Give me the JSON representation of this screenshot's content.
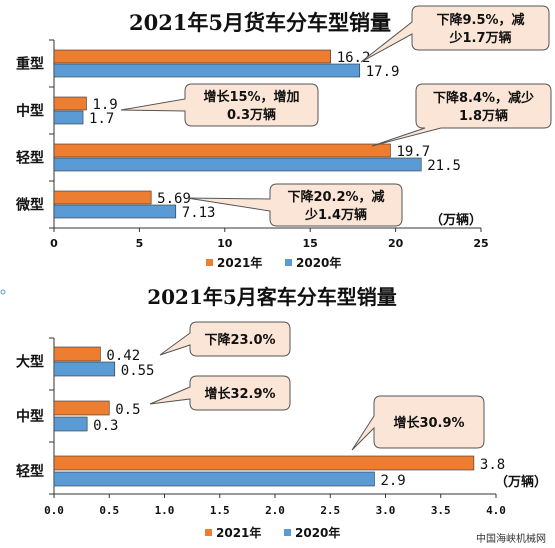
{
  "colors": {
    "y2021": "#ED7D31",
    "y2020": "#5B9BD5",
    "bubble": "#FBE5D6",
    "bubble_stroke": "#555555",
    "axis": "#333333",
    "grid": "#D9D9D9"
  },
  "source": "中国海峡机械网",
  "chart_data": [
    {
      "type": "bar",
      "orientation": "horizontal",
      "title": "2021年5月货车分车型销量",
      "categories": [
        "重型",
        "中型",
        "轻型",
        "微型"
      ],
      "series": [
        {
          "name": "2021年",
          "values": [
            16.2,
            1.9,
            19.7,
            5.69
          ],
          "labels": [
            "16.2",
            "1.9",
            "19.7",
            "5.69"
          ]
        },
        {
          "name": "2020年",
          "values": [
            17.9,
            1.7,
            21.5,
            7.13
          ],
          "labels": [
            "17.9",
            "1.7",
            "21.5",
            "7.13"
          ]
        }
      ],
      "xlim": [
        0,
        25
      ],
      "ticks": [
        "0",
        "5",
        "10",
        "15",
        "20",
        "25"
      ],
      "unit": "（万辆）",
      "legend_position": "bottom",
      "annotations": [
        {
          "category": "重型",
          "lines": [
            "下降9.5%，减",
            "少1.7万辆"
          ]
        },
        {
          "category": "中型",
          "lines": [
            "增长15%，增加",
            "0.3万辆"
          ]
        },
        {
          "category": "轻型",
          "lines": [
            "下降8.4%，减少",
            "1.8万辆"
          ]
        },
        {
          "category": "微型",
          "lines": [
            "下降20.2%，减",
            "少1.4万辆"
          ]
        }
      ]
    },
    {
      "type": "bar",
      "orientation": "horizontal",
      "title": "2021年5月客车分车型销量",
      "categories": [
        "大型",
        "中型",
        "轻型"
      ],
      "series": [
        {
          "name": "2021年",
          "values": [
            0.42,
            0.5,
            3.8
          ],
          "labels": [
            "0.42",
            "0.5",
            "3.8"
          ]
        },
        {
          "name": "2020年",
          "values": [
            0.55,
            0.3,
            2.9
          ],
          "labels": [
            "0.55",
            "0.3",
            "2.9"
          ]
        }
      ],
      "xlim": [
        0,
        4
      ],
      "ticks": [
        "0.0",
        "0.5",
        "1.0",
        "1.5",
        "2.0",
        "2.5",
        "3.0",
        "3.5",
        "4.0"
      ],
      "unit": "（万辆）",
      "legend_position": "bottom",
      "annotations": [
        {
          "category": "大型",
          "lines": [
            "下降23.0%"
          ]
        },
        {
          "category": "中型",
          "lines": [
            "增长32.9%"
          ]
        },
        {
          "category": "轻型",
          "lines": [
            "增长30.9%"
          ]
        }
      ]
    }
  ]
}
